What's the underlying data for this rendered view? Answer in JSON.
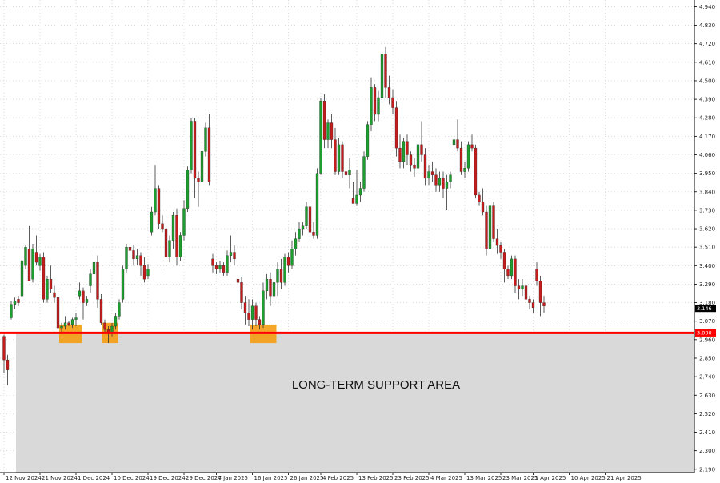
{
  "colors": {
    "bull": "#1e9e2e",
    "bear": "#c51d1d",
    "wick": "#333333",
    "support_line": "#ff0000",
    "support_area": "#d9d9d9",
    "swing_markers": "#f39c12",
    "grid": "#c8c8c8",
    "price_tag_bg": "#000000",
    "support_tag_bg": "#ff0000"
  },
  "chart_data": {
    "type": "candlestick",
    "ylim": [
      2.17,
      4.98
    ],
    "yticks": [
      "4.940",
      "4.830",
      "4.720",
      "4.610",
      "4.500",
      "4.390",
      "4.280",
      "4.170",
      "4.060",
      "3.950",
      "3.840",
      "3.730",
      "3.620",
      "3.510",
      "3.400",
      "3.290",
      "3.180",
      "3.070",
      "2.960",
      "2.850",
      "2.740",
      "2.630",
      "2.520",
      "2.410",
      "2.300",
      "2.190"
    ],
    "xticks": [
      {
        "label": "12 Nov 2024",
        "index": 0
      },
      {
        "label": "21 Nov 2024",
        "index": 10
      },
      {
        "label": "1 Dec 2024",
        "index": 20
      },
      {
        "label": "10 Dec 2024",
        "index": 30
      },
      {
        "label": "19 Dec 2024",
        "index": 40
      },
      {
        "label": "29 Dec 2024",
        "index": 50
      },
      {
        "label": "7 Jan 2025",
        "index": 59
      },
      {
        "label": "16 Jan 2025",
        "index": 69
      },
      {
        "label": "26 Jan 2025",
        "index": 79
      },
      {
        "label": "4 Feb 2025",
        "index": 88
      },
      {
        "label": "13 Feb 2025",
        "index": 98
      },
      {
        "label": "23 Feb 2025",
        "index": 108
      },
      {
        "label": "4 Mar 2025",
        "index": 118
      },
      {
        "label": "13 Mar 2025",
        "index": 128
      },
      {
        "label": "23 Mar 2025",
        "index": 138
      },
      {
        "label": "1 Apr 2025",
        "index": 147
      },
      {
        "label": "10 Apr 2025",
        "index": 157
      },
      {
        "label": "21 Apr 2025",
        "index": 167
      }
    ],
    "candles": [
      [
        2.98,
        2.99,
        2.76,
        2.84
      ],
      [
        2.84,
        2.87,
        2.69,
        2.78
      ],
      [
        3.09,
        3.19,
        3.08,
        3.17
      ],
      [
        3.17,
        3.21,
        3.14,
        3.19
      ],
      [
        3.2,
        3.22,
        3.16,
        3.18
      ],
      [
        3.22,
        3.45,
        3.2,
        3.43
      ],
      [
        3.4,
        3.52,
        3.38,
        3.51
      ],
      [
        3.5,
        3.64,
        3.32,
        3.31
      ],
      [
        3.32,
        3.53,
        3.3,
        3.5
      ],
      [
        3.48,
        3.58,
        3.4,
        3.42
      ],
      [
        3.4,
        3.47,
        3.37,
        3.45
      ],
      [
        3.45,
        3.48,
        3.18,
        3.2
      ],
      [
        3.2,
        3.34,
        3.18,
        3.32
      ],
      [
        3.32,
        3.4,
        3.24,
        3.26
      ],
      [
        3.24,
        3.28,
        3.18,
        3.21
      ],
      [
        3.21,
        3.25,
        3.02,
        3.03
      ],
      [
        3.03,
        3.06,
        3.0,
        3.04
      ],
      [
        3.04,
        3.1,
        3.02,
        3.06
      ],
      [
        3.06,
        3.07,
        3.04,
        3.05
      ],
      [
        3.05,
        3.09,
        3.03,
        3.08
      ],
      [
        3.08,
        3.12,
        3.04,
        3.09
      ],
      [
        3.22,
        3.3,
        3.2,
        3.25
      ],
      [
        3.25,
        3.27,
        3.08,
        3.18
      ],
      [
        3.18,
        3.22,
        3.16,
        3.2
      ],
      [
        3.28,
        3.38,
        3.24,
        3.35
      ],
      [
        3.35,
        3.46,
        3.3,
        3.42
      ],
      [
        3.42,
        3.46,
        3.15,
        3.2
      ],
      [
        3.2,
        3.23,
        3.05,
        3.06
      ],
      [
        3.06,
        3.08,
        3.0,
        3.02
      ],
      [
        3.02,
        3.04,
        2.94,
        3.0
      ],
      [
        3.0,
        3.06,
        2.98,
        3.04
      ],
      [
        3.04,
        3.12,
        3.02,
        3.1
      ],
      [
        3.1,
        3.2,
        3.08,
        3.18
      ],
      [
        3.2,
        3.4,
        3.18,
        3.38
      ],
      [
        3.38,
        3.53,
        3.36,
        3.51
      ],
      [
        3.51,
        3.53,
        3.46,
        3.49
      ],
      [
        3.49,
        3.52,
        3.4,
        3.44
      ],
      [
        3.44,
        3.5,
        3.4,
        3.46
      ],
      [
        3.46,
        3.48,
        3.34,
        3.4
      ],
      [
        3.4,
        3.45,
        3.3,
        3.32
      ],
      [
        3.34,
        3.41,
        3.32,
        3.38
      ],
      [
        3.6,
        3.75,
        3.58,
        3.72
      ],
      [
        3.72,
        4.0,
        3.7,
        3.86
      ],
      [
        3.86,
        3.88,
        3.62,
        3.65
      ],
      [
        3.65,
        3.7,
        3.6,
        3.62
      ],
      [
        3.62,
        3.65,
        3.38,
        3.45
      ],
      [
        3.45,
        3.58,
        3.42,
        3.55
      ],
      [
        3.55,
        3.72,
        3.5,
        3.7
      ],
      [
        3.7,
        3.74,
        3.4,
        3.45
      ],
      [
        3.45,
        3.6,
        3.43,
        3.58
      ],
      [
        3.58,
        3.79,
        3.55,
        3.74
      ],
      [
        3.74,
        3.99,
        3.72,
        3.97
      ],
      [
        3.97,
        4.28,
        3.95,
        4.26
      ],
      [
        4.26,
        4.28,
        3.8,
        3.92
      ],
      [
        3.92,
        3.96,
        3.75,
        3.9
      ],
      [
        3.9,
        4.12,
        3.88,
        4.08
      ],
      [
        4.08,
        4.25,
        4.05,
        4.22
      ],
      [
        4.22,
        4.3,
        3.88,
        3.9
      ],
      [
        3.44,
        3.47,
        3.36,
        3.4
      ],
      [
        3.4,
        3.42,
        3.35,
        3.38
      ],
      [
        3.38,
        3.43,
        3.36,
        3.4
      ],
      [
        3.4,
        3.42,
        3.34,
        3.36
      ],
      [
        3.36,
        3.49,
        3.34,
        3.46
      ],
      [
        3.46,
        3.58,
        3.42,
        3.48
      ],
      [
        3.48,
        3.52,
        3.4,
        3.44
      ],
      [
        3.32,
        3.34,
        3.24,
        3.3
      ],
      [
        3.3,
        3.33,
        3.14,
        3.18
      ],
      [
        3.18,
        3.22,
        3.05,
        3.12
      ],
      [
        3.12,
        3.2,
        3.04,
        3.08
      ],
      [
        3.08,
        3.2,
        3.02,
        3.16
      ],
      [
        3.16,
        3.18,
        3.04,
        3.08
      ],
      [
        3.08,
        3.1,
        3.02,
        3.05
      ],
      [
        3.05,
        3.3,
        3.03,
        3.25
      ],
      [
        3.25,
        3.35,
        3.2,
        3.32
      ],
      [
        3.32,
        3.36,
        3.16,
        3.22
      ],
      [
        3.22,
        3.34,
        3.18,
        3.3
      ],
      [
        3.3,
        3.42,
        3.22,
        3.38
      ],
      [
        3.38,
        3.44,
        3.26,
        3.3
      ],
      [
        3.3,
        3.47,
        3.28,
        3.45
      ],
      [
        3.45,
        3.48,
        3.36,
        3.4
      ],
      [
        3.4,
        3.55,
        3.38,
        3.5
      ],
      [
        3.5,
        3.6,
        3.46,
        3.56
      ],
      [
        3.56,
        3.66,
        3.54,
        3.62
      ],
      [
        3.62,
        3.66,
        3.58,
        3.64
      ],
      [
        3.64,
        3.78,
        3.62,
        3.75
      ],
      [
        3.75,
        3.79,
        3.55,
        3.6
      ],
      [
        3.6,
        3.66,
        3.56,
        3.58
      ],
      [
        3.58,
        3.98,
        3.56,
        3.95
      ],
      [
        3.95,
        4.4,
        3.94,
        4.38
      ],
      [
        4.38,
        4.42,
        4.1,
        4.15
      ],
      [
        4.15,
        4.27,
        4.1,
        4.25
      ],
      [
        4.25,
        4.3,
        4.1,
        4.15
      ],
      [
        4.15,
        4.22,
        3.94,
        3.96
      ],
      [
        3.96,
        4.16,
        3.94,
        4.12
      ],
      [
        4.12,
        4.14,
        3.92,
        3.96
      ],
      [
        3.96,
        4.0,
        3.88,
        3.94
      ],
      [
        3.94,
        4.04,
        3.86,
        3.97
      ],
      [
        3.8,
        3.9,
        3.77,
        3.77
      ],
      [
        3.77,
        3.97,
        3.76,
        3.82
      ],
      [
        3.82,
        3.9,
        3.78,
        3.86
      ],
      [
        3.86,
        4.08,
        3.84,
        4.05
      ],
      [
        4.05,
        4.26,
        4.03,
        4.24
      ],
      [
        4.24,
        4.52,
        4.2,
        4.46
      ],
      [
        4.46,
        4.48,
        4.26,
        4.3
      ],
      [
        4.3,
        4.44,
        4.26,
        4.4
      ],
      [
        4.4,
        4.93,
        4.37,
        4.66
      ],
      [
        4.66,
        4.7,
        4.4,
        4.46
      ],
      [
        4.46,
        4.53,
        4.36,
        4.4
      ],
      [
        4.4,
        4.45,
        4.3,
        4.34
      ],
      [
        4.34,
        4.38,
        4.05,
        4.1
      ],
      [
        4.1,
        4.18,
        3.98,
        4.02
      ],
      [
        4.02,
        4.16,
        3.98,
        4.14
      ],
      [
        4.14,
        4.18,
        4.0,
        4.06
      ],
      [
        4.06,
        4.08,
        3.96,
        4.0
      ],
      [
        4.0,
        4.04,
        3.93,
        3.98
      ],
      [
        3.98,
        4.14,
        3.96,
        4.12
      ],
      [
        4.12,
        4.26,
        4.02,
        4.06
      ],
      [
        4.06,
        4.1,
        3.88,
        3.92
      ],
      [
        3.92,
        4.0,
        3.88,
        3.96
      ],
      [
        3.96,
        4.02,
        3.9,
        3.94
      ],
      [
        3.94,
        3.98,
        3.84,
        3.88
      ],
      [
        3.88,
        3.96,
        3.84,
        3.92
      ],
      [
        3.92,
        3.96,
        3.8,
        3.86
      ],
      [
        3.86,
        3.94,
        3.73,
        3.9
      ],
      [
        3.9,
        3.96,
        3.86,
        3.94
      ],
      [
        4.12,
        4.18,
        4.08,
        4.15
      ],
      [
        4.15,
        4.27,
        4.08,
        4.1
      ],
      [
        4.1,
        4.14,
        3.94,
        3.96
      ],
      [
        3.96,
        4.02,
        3.92,
        3.98
      ],
      [
        3.98,
        4.14,
        3.96,
        4.12
      ],
      [
        4.12,
        4.18,
        4.08,
        4.1
      ],
      [
        4.1,
        4.12,
        3.8,
        3.82
      ],
      [
        3.82,
        3.84,
        3.76,
        3.78
      ],
      [
        3.78,
        3.86,
        3.7,
        3.72
      ],
      [
        3.72,
        3.76,
        3.46,
        3.5
      ],
      [
        3.5,
        3.79,
        3.48,
        3.76
      ],
      [
        3.76,
        3.78,
        3.54,
        3.56
      ],
      [
        3.56,
        3.62,
        3.47,
        3.52
      ],
      [
        3.52,
        3.54,
        3.44,
        3.48
      ],
      [
        3.48,
        3.5,
        3.3,
        3.38
      ],
      [
        3.38,
        3.4,
        3.32,
        3.34
      ],
      [
        3.34,
        3.46,
        3.32,
        3.44
      ],
      [
        3.44,
        3.46,
        3.24,
        3.28
      ],
      [
        3.28,
        3.32,
        3.2,
        3.26
      ],
      [
        3.26,
        3.32,
        3.22,
        3.28
      ],
      [
        3.28,
        3.32,
        3.18,
        3.2
      ],
      [
        3.2,
        3.22,
        3.14,
        3.18
      ],
      [
        3.18,
        3.2,
        3.12,
        3.15
      ],
      [
        3.38,
        3.42,
        3.28,
        3.31
      ],
      [
        3.31,
        3.34,
        3.1,
        3.18
      ],
      [
        3.18,
        3.22,
        3.12,
        3.16
      ]
    ],
    "support_level": 3.0,
    "current_price": 3.146,
    "swing_lows": [
      {
        "from": 16,
        "to": 21,
        "low": 2.94,
        "high": 3.05
      },
      {
        "from": 28,
        "to": 31,
        "low": 2.94,
        "high": 3.06
      },
      {
        "from": 69,
        "to": 75,
        "low": 2.94,
        "high": 3.05
      }
    ]
  },
  "labels": {
    "support_value": "3.000",
    "current_price": "3.146",
    "annotation": "LONG-TERM SUPPORT AREA"
  }
}
